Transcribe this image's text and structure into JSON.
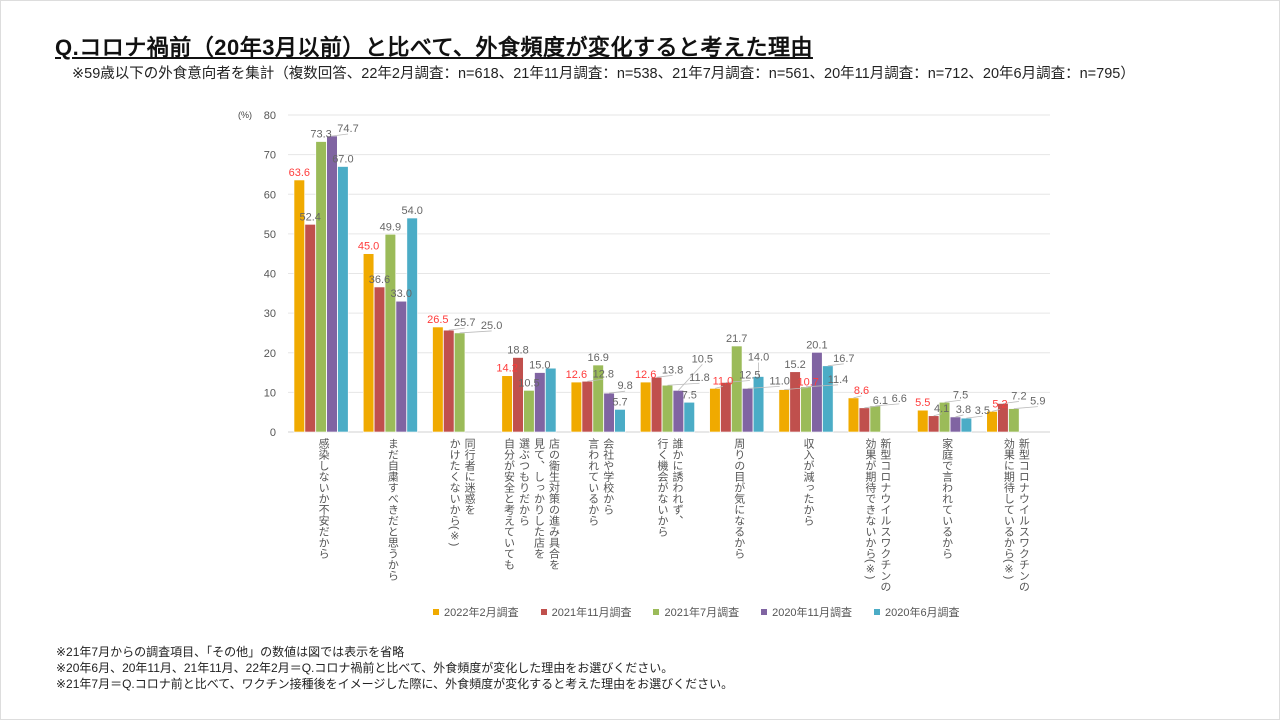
{
  "header": {
    "title": "Q.コロナ禍前（20年3月以前）と比べて、外食頻度が変化すると考えた理由",
    "subtitle": "※59歳以下の外食意向者を集計（複数回答、22年2月調査：n=618、21年11月調査：n=538、21年7月調査：n=561、20年11月調査：n=712、20年6月調査：n=795）"
  },
  "chart_data": {
    "type": "bar",
    "title": "",
    "ylabel": "(%)",
    "xlabel": "",
    "ylim": [
      0,
      80
    ],
    "yticks": [
      "0",
      "10",
      "20",
      "30",
      "40",
      "50",
      "60",
      "70",
      "80"
    ],
    "grid": true,
    "legend_position": "bottom",
    "categories": [
      [
        "感染しないか不安だから"
      ],
      [
        "まだ自粛すべきだと思うから"
      ],
      [
        "かけたくないから(※)",
        "同行者に迷惑を"
      ],
      [
        "自分が安全と考えていても",
        "選ぶつもりだから",
        "見て、しっかりした店を",
        "店の衛生対策の進み具合を"
      ],
      [
        "言われているから",
        "会社や学校から"
      ],
      [
        "行く機会がないから",
        "誰かに誘われず、"
      ],
      [
        "周りの目が気になるから"
      ],
      [
        "収入が減ったから"
      ],
      [
        "効果が期待できないから(※)",
        "新型コロナウイルスワクチンの"
      ],
      [
        "家庭で言われているから"
      ],
      [
        "効果に期待しているから(※)",
        "新型コロナウイルスワクチンの"
      ]
    ],
    "series": [
      {
        "name": "2022年2月調査",
        "color": "#f0aa00",
        "label_color": "#ff3b3b",
        "values": [
          63.6,
          45.0,
          26.5,
          14.2,
          12.6,
          12.6,
          11.0,
          10.7,
          8.6,
          5.5,
          5.2
        ]
      },
      {
        "name": "2021年11月調査",
        "color": "#c0504d",
        "label_color": "#666666",
        "values": [
          52.4,
          36.6,
          25.7,
          18.8,
          12.8,
          13.8,
          12.5,
          15.2,
          6.1,
          4.1,
          7.2
        ]
      },
      {
        "name": "2021年7月調査",
        "color": "#9bbb59",
        "label_color": "#666666",
        "values": [
          73.3,
          49.9,
          25.0,
          10.5,
          16.9,
          11.8,
          21.7,
          11.4,
          6.6,
          7.5,
          5.9
        ]
      },
      {
        "name": "2020年11月調査",
        "color": "#8064a2",
        "label_color": "#666666",
        "values": [
          74.7,
          33.0,
          null,
          15.0,
          9.8,
          10.5,
          11.0,
          20.1,
          null,
          3.8,
          null
        ]
      },
      {
        "name": "2020年6月調査",
        "color": "#4bacc6",
        "label_color": "#666666",
        "values": [
          67.0,
          54.0,
          null,
          16.1,
          5.7,
          7.5,
          14.0,
          16.7,
          null,
          3.5,
          null
        ]
      }
    ],
    "unlabeled_points": [
      [
        3,
        4
      ]
    ]
  },
  "notes": [
    "※21年7月からの調査項目、「その他」の数値は図では表示を省略",
    "※20年6月、20年11月、21年11月、22年2月＝Q.コロナ禍前と比べて、外食頻度が変化した理由をお選びください。",
    "※21年7月＝Q.コロナ前と比べて、ワクチン接種後をイメージした際に、外食頻度が変化すると考えた理由をお選びください。"
  ]
}
